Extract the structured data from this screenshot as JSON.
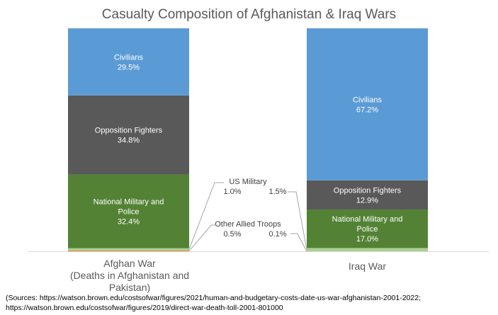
{
  "chart_data": {
    "type": "bar",
    "stacked": "percent",
    "title": "Casualty Composition of Afghanistan & Iraq Wars",
    "categories": [
      "Afghan War",
      "Iraq War"
    ],
    "category_sublabels": [
      "(Deaths in Afghanistan and Pakistan)",
      ""
    ],
    "series": [
      {
        "name": "Other Allied Troops",
        "label_name": "Other Allied Troops",
        "values": [
          0.5,
          0.1
        ],
        "color": "#ed7d31"
      },
      {
        "name": "US Military",
        "label_name": "US Military",
        "values": [
          1.0,
          1.5
        ],
        "color": "#a9d18e"
      },
      {
        "name": "National Military and Police",
        "label_name": "National Military and\nPolice",
        "values": [
          32.4,
          17.0
        ],
        "color": "#548235"
      },
      {
        "name": "Opposition Fighters",
        "label_name": "Opposition Fighters",
        "values": [
          34.8,
          12.9
        ],
        "color": "#595959"
      },
      {
        "name": "Civilians",
        "label_name": "Civilians",
        "values": [
          29.5,
          67.2
        ],
        "color": "#5b9bd5"
      }
    ],
    "data_labels": {
      "Civilians": [
        "29.5%",
        "67.2%"
      ],
      "Opposition Fighters": [
        "34.8%",
        "12.9%"
      ],
      "National Military and Police": [
        "32.4%",
        "17.0%"
      ],
      "US Military": [
        "1.0%",
        "1.5%"
      ],
      "Other Allied Troops": [
        "0.5%",
        "0.1%"
      ]
    },
    "ylim": [
      0,
      100
    ],
    "grid": false,
    "legend": "none"
  },
  "sources": {
    "line1": "(Sources: https://watson.brown.edu/costsofwar/figures/2021/human-and-budgetary-costs-date-us-war-afghanistan-2001-2022;",
    "line2": "https://watson.brown.edu/costsofwar/figures/2019/direct-war-death-toll-2001-801000"
  },
  "colors": {
    "civilians": "#5b9bd5",
    "opposition": "#595959",
    "national": "#548235",
    "us_military": "#a9d18e",
    "allied": "#ed7d31"
  }
}
